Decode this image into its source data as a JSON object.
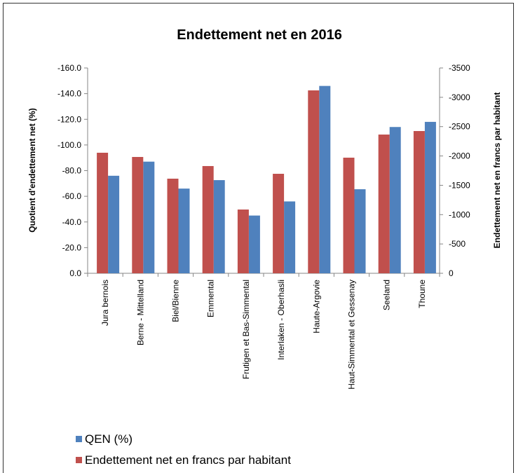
{
  "chart_data": {
    "type": "bar",
    "title": "Endettement net en 2016",
    "ylabel": "Quotient d'endettement net  (%)",
    "y2label": "Endettement net en francs par habitant",
    "categories": [
      "Jura bernois",
      "Berne - Mittelland",
      "Biel/Bienne",
      "Emmental",
      "Frutigen et Bas-Simmental",
      "Interlaken - Oberhasli",
      "Haute-Argovie",
      "Haut-Simmental et Gessenay",
      "Seeland",
      "Thoune"
    ],
    "series": [
      {
        "name": "QEN (%)",
        "color": "#4f81bd",
        "values": [
          -76,
          -87,
          -66,
          -72.6,
          -45,
          -56,
          -146,
          -65.5,
          -114,
          -118
        ]
      },
      {
        "name": "Endettement net en francs par habitant",
        "color": "#c0504d",
        "axis": "y2",
        "values": [
          -2055,
          -1983,
          -1613,
          -1828,
          -1087,
          -1696,
          -3118,
          -1971,
          -2365,
          -2425
        ]
      }
    ],
    "ylim": [
      0,
      -160
    ],
    "yticks": [
      {
        "value": 0,
        "label": "0.0"
      },
      {
        "value": -20,
        "label": "-20.0"
      },
      {
        "value": -40,
        "label": "-40.0"
      },
      {
        "value": -60,
        "label": "-60.0"
      },
      {
        "value": -80,
        "label": "-80.0"
      },
      {
        "value": -100,
        "label": "-100.0"
      },
      {
        "value": -120,
        "label": "-120.0"
      },
      {
        "value": -140,
        "label": "-140.0"
      },
      {
        "value": -160,
        "label": "-160.0"
      }
    ],
    "y2lim": [
      0,
      -3500
    ],
    "y2ticks": [
      0,
      -500,
      -1000,
      -1500,
      -2000,
      -2500,
      -3000,
      -3500
    ],
    "grid": false,
    "legend": "bottom-left"
  }
}
